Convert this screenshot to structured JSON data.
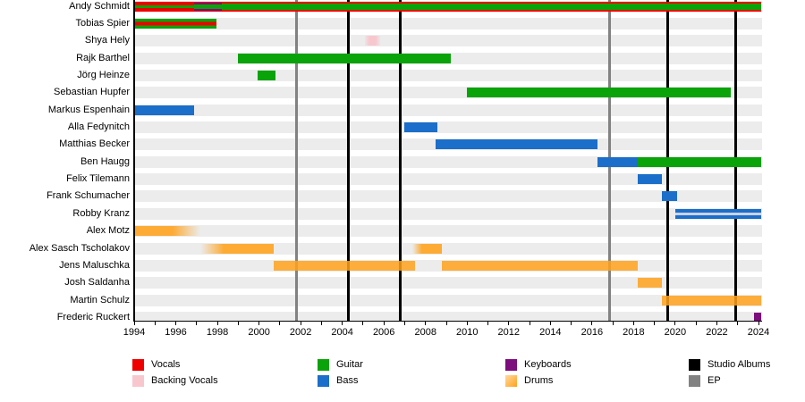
{
  "chart_data": {
    "type": "bar",
    "subtype": "band-member-gantt-timeline",
    "title": "",
    "x_axis": {
      "start": 1994,
      "end": 2024,
      "tick_interval": 1,
      "label_interval": 2,
      "tick_labels": [
        "1994",
        "1996",
        "1998",
        "2000",
        "2002",
        "2004",
        "2006",
        "2008",
        "2010",
        "2012",
        "2014",
        "2016",
        "2018",
        "2020",
        "2022",
        "2024"
      ]
    },
    "palette": {
      "vocals": "#ee0000",
      "backing_vocals": "#f8c7ce",
      "guitar": "#0aa30a",
      "bass": "#1b6ec9",
      "keyboards": "#7d0c7d",
      "drums": "#ffa21c",
      "studio_album": "#000000",
      "ep": "#828282",
      "row_band": "#ececec",
      "bass_backing_stripe": "#ccd1ee"
    },
    "members": [
      {
        "name": "Andy Schmidt",
        "roles": [
          "vocals",
          "guitar",
          "keyboards"
        ],
        "segments": [
          {
            "start": 1994.0,
            "end": 1996.9,
            "stripes": [
              [
                "vocals",
                0,
                36
              ],
              [
                "guitar",
                36,
                64
              ],
              [
                "vocals",
                64,
                100
              ]
            ]
          },
          {
            "start": 1996.9,
            "end": 1998.2,
            "stripes": [
              [
                "vocals",
                0,
                9
              ],
              [
                "keyboards",
                9,
                27
              ],
              [
                "guitar",
                27,
                73
              ],
              [
                "keyboards",
                73,
                91
              ],
              [
                "vocals",
                91,
                100
              ]
            ]
          },
          {
            "start": 1998.2,
            "end": 2024.15,
            "stripes": [
              [
                "vocals",
                0,
                18
              ],
              [
                "guitar",
                18,
                82
              ],
              [
                "vocals",
                82,
                100
              ]
            ]
          }
        ]
      },
      {
        "name": "Tobias Spier",
        "roles": [
          "guitar",
          "vocals"
        ],
        "segments": [
          {
            "start": 1994.05,
            "end": 1997.95,
            "stripes": [
              [
                "guitar",
                0,
                33
              ],
              [
                "vocals",
                33,
                67
              ],
              [
                "guitar",
                67,
                100
              ]
            ]
          }
        ]
      },
      {
        "name": "Shya Hely",
        "roles": [
          "backing_vocals"
        ],
        "segments": [
          {
            "start": 2005.1,
            "end": 2005.8,
            "color": "backing_vocals",
            "fade": "both"
          }
        ]
      },
      {
        "name": "Rajk Barthel",
        "roles": [
          "guitar"
        ],
        "segments": [
          {
            "start": 1999.0,
            "end": 2009.2,
            "color": "guitar"
          }
        ]
      },
      {
        "name": "Jörg Heinze",
        "roles": [
          "guitar"
        ],
        "segments": [
          {
            "start": 1999.95,
            "end": 2000.8,
            "color": "guitar"
          }
        ]
      },
      {
        "name": "Sebastian Hupfer",
        "roles": [
          "guitar"
        ],
        "segments": [
          {
            "start": 2010.0,
            "end": 2022.65,
            "color": "guitar"
          }
        ]
      },
      {
        "name": "Markus Espenhain",
        "roles": [
          "bass"
        ],
        "segments": [
          {
            "start": 1994.05,
            "end": 1996.9,
            "color": "bass"
          }
        ]
      },
      {
        "name": "Alla Fedynitch",
        "roles": [
          "bass"
        ],
        "segments": [
          {
            "start": 2007.0,
            "end": 2008.55,
            "color": "bass"
          }
        ]
      },
      {
        "name": "Matthias Becker",
        "roles": [
          "bass"
        ],
        "segments": [
          {
            "start": 2008.5,
            "end": 2016.25,
            "color": "bass"
          }
        ]
      },
      {
        "name": "Ben Haugg",
        "roles": [
          "bass",
          "guitar"
        ],
        "segments": [
          {
            "start": 2016.25,
            "end": 2018.2,
            "color": "bass"
          },
          {
            "start": 2018.2,
            "end": 2024.15,
            "color": "guitar"
          }
        ]
      },
      {
        "name": "Felix Tilemann",
        "roles": [
          "bass"
        ],
        "segments": [
          {
            "start": 2018.2,
            "end": 2019.35,
            "color": "bass"
          }
        ]
      },
      {
        "name": "Frank Schumacher",
        "roles": [
          "bass"
        ],
        "segments": [
          {
            "start": 2019.35,
            "end": 2020.1,
            "color": "bass"
          }
        ]
      },
      {
        "name": "Robby Kranz",
        "roles": [
          "bass",
          "backing_vocals"
        ],
        "segments": [
          {
            "start": 2020.0,
            "end": 2024.15,
            "stripes": [
              [
                "bass",
                0,
                36
              ],
              [
                "bass_backing_stripe",
                36,
                62
              ],
              [
                "bass",
                62,
                100
              ]
            ]
          }
        ]
      },
      {
        "name": "Alex Motz",
        "roles": [
          "drums"
        ],
        "segments": [
          {
            "start": 1994.0,
            "end": 1997.2,
            "color": "drums",
            "fade": "out",
            "opacity": 0.88
          }
        ]
      },
      {
        "name": "Alex Sasch Tscholakov",
        "roles": [
          "drums"
        ],
        "segments": [
          {
            "start": 1997.2,
            "end": 2000.7,
            "color": "drums",
            "fade": "in",
            "opacity": 0.88
          },
          {
            "start": 2007.35,
            "end": 2008.8,
            "color": "drums",
            "fade": "in",
            "opacity": 0.88
          }
        ]
      },
      {
        "name": "Jens Maluschka",
        "roles": [
          "drums"
        ],
        "segments": [
          {
            "start": 2000.7,
            "end": 2007.5,
            "color": "drums",
            "opacity": 0.85
          },
          {
            "start": 2008.8,
            "end": 2018.2,
            "color": "drums",
            "opacity": 0.85
          }
        ]
      },
      {
        "name": "Josh Saldanha",
        "roles": [
          "drums"
        ],
        "segments": [
          {
            "start": 2018.2,
            "end": 2019.35,
            "color": "drums",
            "opacity": 0.85
          }
        ]
      },
      {
        "name": "Martin Schulz",
        "roles": [
          "drums"
        ],
        "segments": [
          {
            "start": 2019.35,
            "end": 2024.15,
            "color": "drums",
            "opacity": 0.85
          }
        ]
      },
      {
        "name": "Frederic Ruckert",
        "roles": [
          "keyboards"
        ],
        "segments": [
          {
            "start": 2023.8,
            "end": 2024.15,
            "color": "keyboards"
          }
        ]
      }
    ],
    "events": [
      {
        "year": 2001.8,
        "type": "ep"
      },
      {
        "year": 2004.3,
        "type": "studio_album"
      },
      {
        "year": 2006.8,
        "type": "studio_album"
      },
      {
        "year": 2016.85,
        "type": "ep"
      },
      {
        "year": 2019.65,
        "type": "studio_album"
      },
      {
        "year": 2022.9,
        "type": "studio_album"
      }
    ],
    "legend": {
      "position": "bottom",
      "items": [
        {
          "id": "vocals",
          "label": "Vocals"
        },
        {
          "id": "backing_vocals",
          "label": "Backing Vocals"
        },
        {
          "id": "guitar",
          "label": "Guitar"
        },
        {
          "id": "bass",
          "label": "Bass"
        },
        {
          "id": "keyboards",
          "label": "Keyboards"
        },
        {
          "id": "drums",
          "label": "Drums",
          "gradient": true
        },
        {
          "id": "studio_album",
          "label": "Studio Albums"
        },
        {
          "id": "ep",
          "label": "EP"
        }
      ]
    }
  }
}
